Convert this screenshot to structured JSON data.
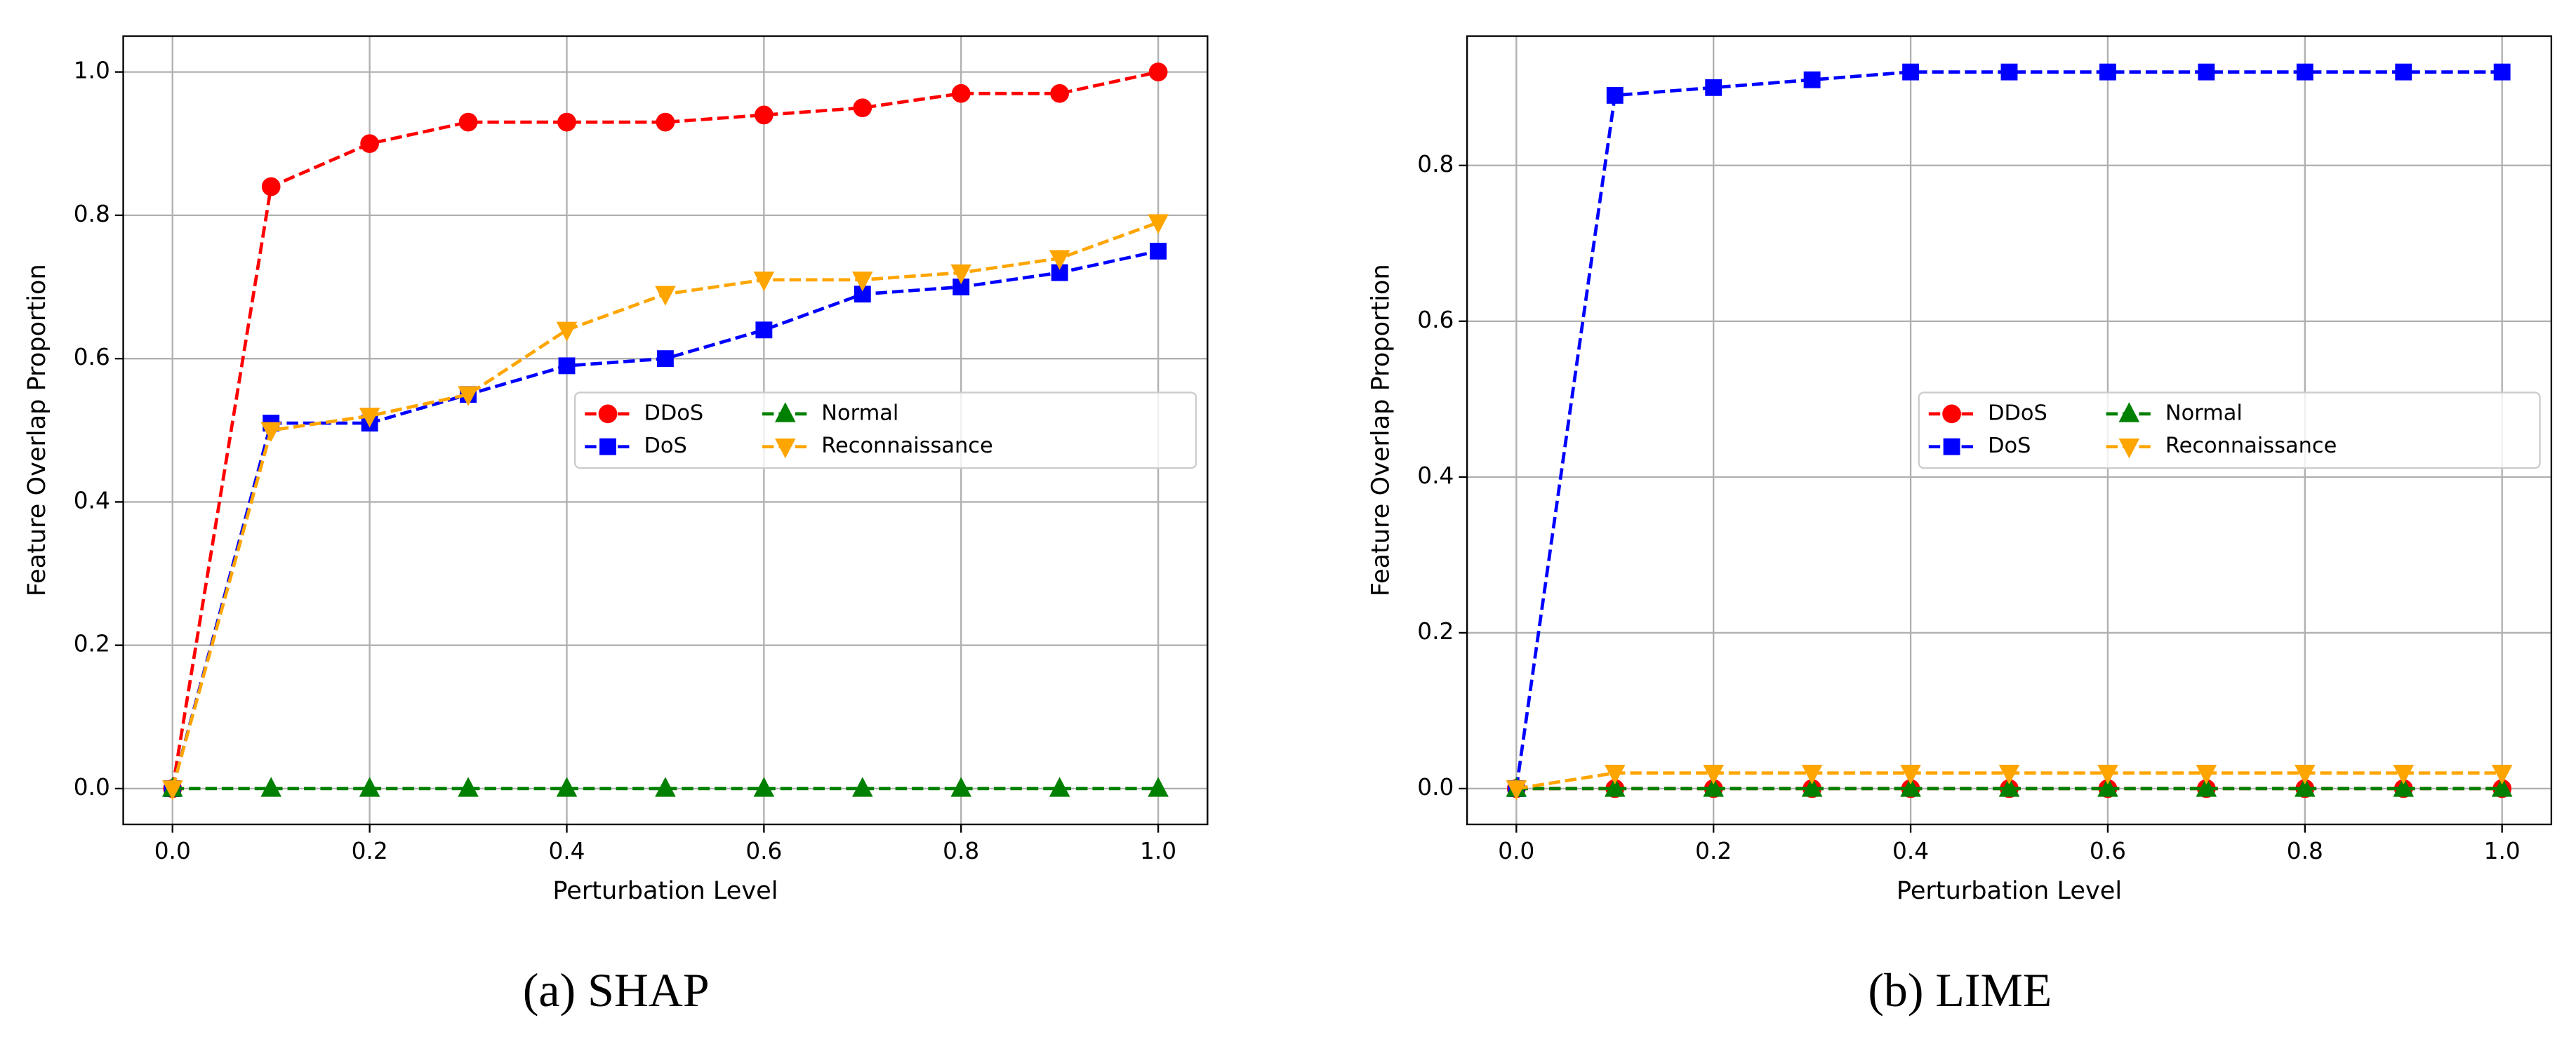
{
  "chart_data": [
    {
      "type": "line",
      "caption": "(a) SHAP",
      "x_label": "Perturbation Level",
      "y_label": "Feature Overlap Proportion",
      "x": [
        0,
        0.1,
        0.2,
        0.3,
        0.4,
        0.5,
        0.6,
        0.7,
        0.8,
        0.9,
        1.0
      ],
      "series": [
        {
          "name": "DDoS",
          "color": "#ff0000",
          "marker": "circle",
          "values": [
            0,
            0.84,
            0.9,
            0.93,
            0.93,
            0.93,
            0.94,
            0.95,
            0.97,
            0.97,
            1.0
          ]
        },
        {
          "name": "DoS",
          "color": "#0000ff",
          "marker": "square",
          "values": [
            0,
            0.51,
            0.51,
            0.55,
            0.59,
            0.6,
            0.64,
            0.69,
            0.7,
            0.72,
            0.75
          ]
        },
        {
          "name": "Normal",
          "color": "#008000",
          "marker": "triangle-up",
          "values": [
            0,
            0,
            0,
            0,
            0,
            0,
            0,
            0,
            0,
            0,
            0
          ]
        },
        {
          "name": "Reconnaissance",
          "color": "#ffa500",
          "marker": "triangle-down",
          "values": [
            0,
            0.5,
            0.52,
            0.55,
            0.64,
            0.69,
            0.71,
            0.71,
            0.72,
            0.74,
            0.79
          ]
        }
      ],
      "xlim": [
        -0.05,
        1.05
      ],
      "ylim": [
        -0.05,
        1.05
      ],
      "xticks": [
        {
          "value": 0,
          "label": "0.0"
        },
        0.2,
        0.4,
        0.6,
        0.8,
        {
          "value": 1,
          "label": "1.0"
        }
      ],
      "yticks": [
        {
          "value": 0,
          "label": "0.0"
        },
        0.2,
        0.4,
        0.6,
        0.8,
        {
          "value": 1,
          "label": "1.0"
        }
      ],
      "grid": true,
      "legend": "center right"
    },
    {
      "type": "line",
      "caption": "(b) LIME",
      "x_label": "Perturbation Level",
      "y_label": "Feature Overlap Proportion",
      "x": [
        0,
        0.1,
        0.2,
        0.3,
        0.4,
        0.5,
        0.6,
        0.7,
        0.8,
        0.9,
        1.0
      ],
      "series": [
        {
          "name": "DDoS",
          "color": "#ff0000",
          "marker": "circle",
          "values": [
            0,
            0,
            0,
            0,
            0,
            0,
            0,
            0,
            0,
            0,
            0
          ]
        },
        {
          "name": "DoS",
          "color": "#0000ff",
          "marker": "square",
          "values": [
            0,
            0.89,
            0.9,
            0.91,
            0.92,
            0.92,
            0.92,
            0.92,
            0.92,
            0.92,
            0.92
          ]
        },
        {
          "name": "Normal",
          "color": "#008000",
          "marker": "triangle-up",
          "values": [
            0,
            0,
            0,
            0,
            0,
            0,
            0,
            0,
            0,
            0,
            0
          ]
        },
        {
          "name": "Reconnaissance",
          "color": "#ffa500",
          "marker": "triangle-down",
          "values": [
            0,
            0.02,
            0.02,
            0.02,
            0.02,
            0.02,
            0.02,
            0.02,
            0.02,
            0.02,
            0.02
          ]
        }
      ],
      "xlim": [
        -0.05,
        1.05
      ],
      "ylim": [
        -0.046,
        0.966
      ],
      "xticks": [
        {
          "value": 0,
          "label": "0.0"
        },
        0.2,
        0.4,
        0.6,
        0.8,
        {
          "value": 1,
          "label": "1.0"
        }
      ],
      "yticks": [
        {
          "value": 0,
          "label": "0.0"
        },
        0.2,
        0.4,
        0.6,
        0.8
      ],
      "grid": true,
      "legend": "center right"
    }
  ]
}
